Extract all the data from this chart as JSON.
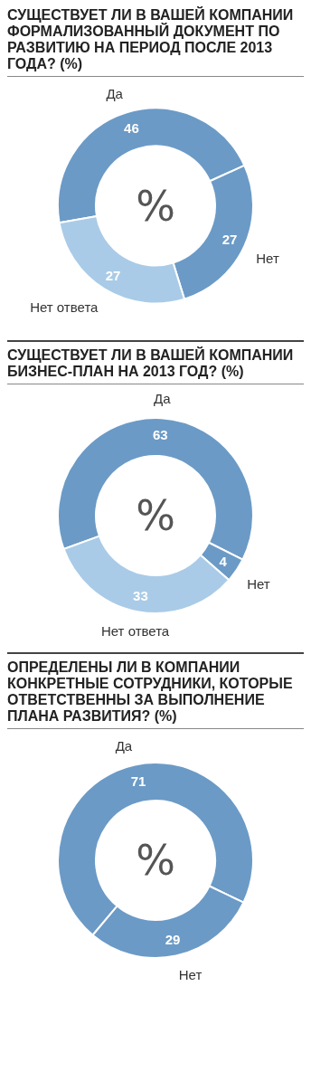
{
  "chart_data": [
    {
      "type": "donut",
      "title": "СУЩЕСТВУЕТ ЛИ В ВАШЕЙ КОМПАНИИ ФОРМАЛИЗОВАННЫЙ ДОКУМЕНТ ПО РАЗВИТИЮ НА ПЕРИОД ПОСЛЕ 2013 ГОДА? (%)",
      "categories": [
        "Да",
        "Нет",
        "Нет ответа"
      ],
      "values": [
        46,
        27,
        27
      ],
      "colors": [
        "#6b9ac6",
        "#6b9ac6",
        "#a9cbe7"
      ],
      "data_labels": true,
      "annotations": [
        "%"
      ]
    },
    {
      "type": "donut",
      "title": "СУЩЕСТВУЕТ ЛИ В ВАШЕЙ КОМПАНИИ БИЗНЕС-ПЛАН НА 2013 ГОД? (%)",
      "categories": [
        "Да",
        "Нет",
        "Нет ответа"
      ],
      "values": [
        63,
        4,
        33
      ],
      "colors": [
        "#6b9ac6",
        "#6b9ac6",
        "#a9cbe7"
      ],
      "data_labels": true,
      "annotations": [
        "%"
      ]
    },
    {
      "type": "donut",
      "title": "ОПРЕДЕЛЕНЫ ЛИ В КОМПАНИИ КОНКРЕТНЫЕ СОТРУДНИКИ, КОТОРЫЕ ОТВЕТСТВЕННЫ ЗА ВЫПОЛНЕНИЕ ПЛАНА РАЗВИТИЯ? (%)",
      "categories": [
        "Да",
        "Нет"
      ],
      "values": [
        71,
        29
      ],
      "colors": [
        "#6b9ac6",
        "#6b9ac6"
      ],
      "data_labels": true,
      "annotations": [
        "%"
      ]
    }
  ]
}
